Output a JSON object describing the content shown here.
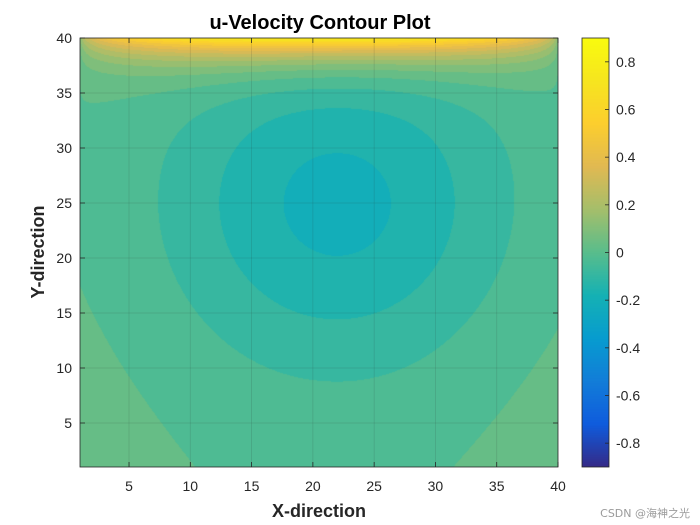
{
  "chart_data": {
    "type": "heatmap",
    "subtype": "filled-contour",
    "title": "u-Velocity Contour Plot",
    "xlabel": "X-direction",
    "ylabel": "Y-direction",
    "xlim": [
      1,
      40
    ],
    "ylim": [
      1,
      40
    ],
    "xticks": [
      5,
      10,
      15,
      20,
      25,
      30,
      35,
      40
    ],
    "yticks": [
      5,
      10,
      15,
      20,
      25,
      30,
      35,
      40
    ],
    "grid": true,
    "colormap": "parula",
    "colorbar": {
      "range": [
        -0.9,
        0.9
      ],
      "ticks": [
        -0.8,
        -0.6,
        -0.4,
        -0.2,
        0,
        0.2,
        0.4,
        0.6,
        0.8
      ],
      "tick_labels": [
        "-0.8",
        "-0.6",
        "-0.4",
        "-0.2",
        "0",
        "0.2",
        "0.4",
        "0.6",
        "0.8"
      ]
    },
    "field_description": {
      "lid_velocity": 1.0,
      "top_boundary_max": 0.85,
      "vortex_min": -0.2,
      "vortex_center": [
        22,
        25
      ]
    }
  },
  "watermark": "CSDN @海神之光"
}
